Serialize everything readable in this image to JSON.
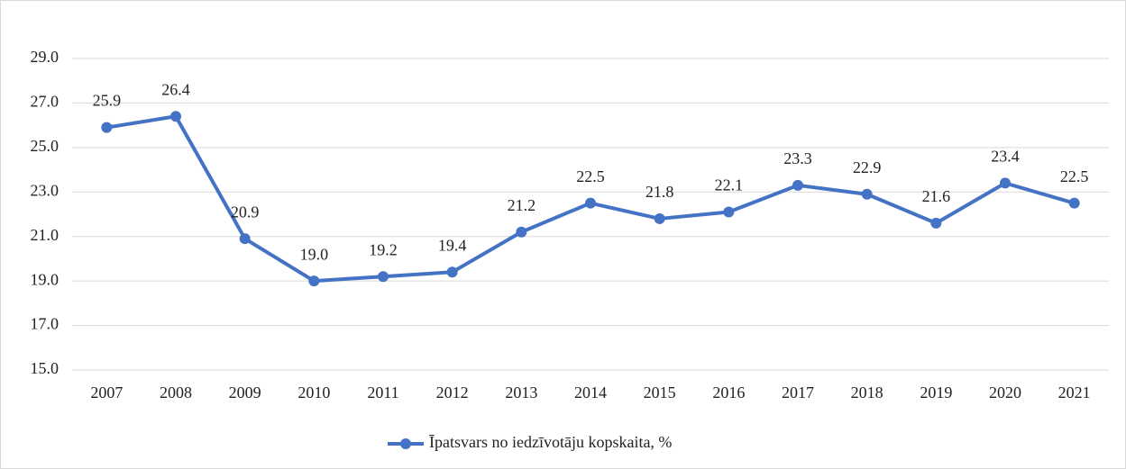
{
  "chart_data": {
    "type": "line",
    "categories": [
      "2007",
      "2008",
      "2009",
      "2010",
      "2011",
      "2012",
      "2013",
      "2014",
      "2015",
      "2016",
      "2017",
      "2018",
      "2019",
      "2020",
      "2021"
    ],
    "series": [
      {
        "name": "Īpatsvars no iedzīvotāju kopskaita, %",
        "color": "#4472c4",
        "values": [
          25.9,
          26.4,
          20.9,
          19.0,
          19.2,
          19.4,
          21.2,
          22.5,
          21.8,
          22.1,
          23.3,
          22.9,
          21.6,
          23.4,
          22.5
        ],
        "value_labels": [
          "25.9",
          "26.4",
          "20.9",
          "19.0",
          "19.2",
          "19.4",
          "21.2",
          "22.5",
          "21.8",
          "22.1",
          "23.3",
          "22.9",
          "21.6",
          "23.4",
          "22.5"
        ]
      }
    ],
    "ylim": [
      15,
      29
    ],
    "yticks": [
      {
        "value": 15,
        "label": "15.0"
      },
      {
        "value": 17,
        "label": "17.0"
      },
      {
        "value": 19,
        "label": "19.0"
      },
      {
        "value": 21,
        "label": "21.0"
      },
      {
        "value": 23,
        "label": "23.0"
      },
      {
        "value": 25,
        "label": "25.0"
      },
      {
        "value": 27,
        "label": "27.0"
      },
      {
        "value": 29,
        "label": "29.0"
      }
    ],
    "grid": true,
    "legend": "bottom"
  }
}
